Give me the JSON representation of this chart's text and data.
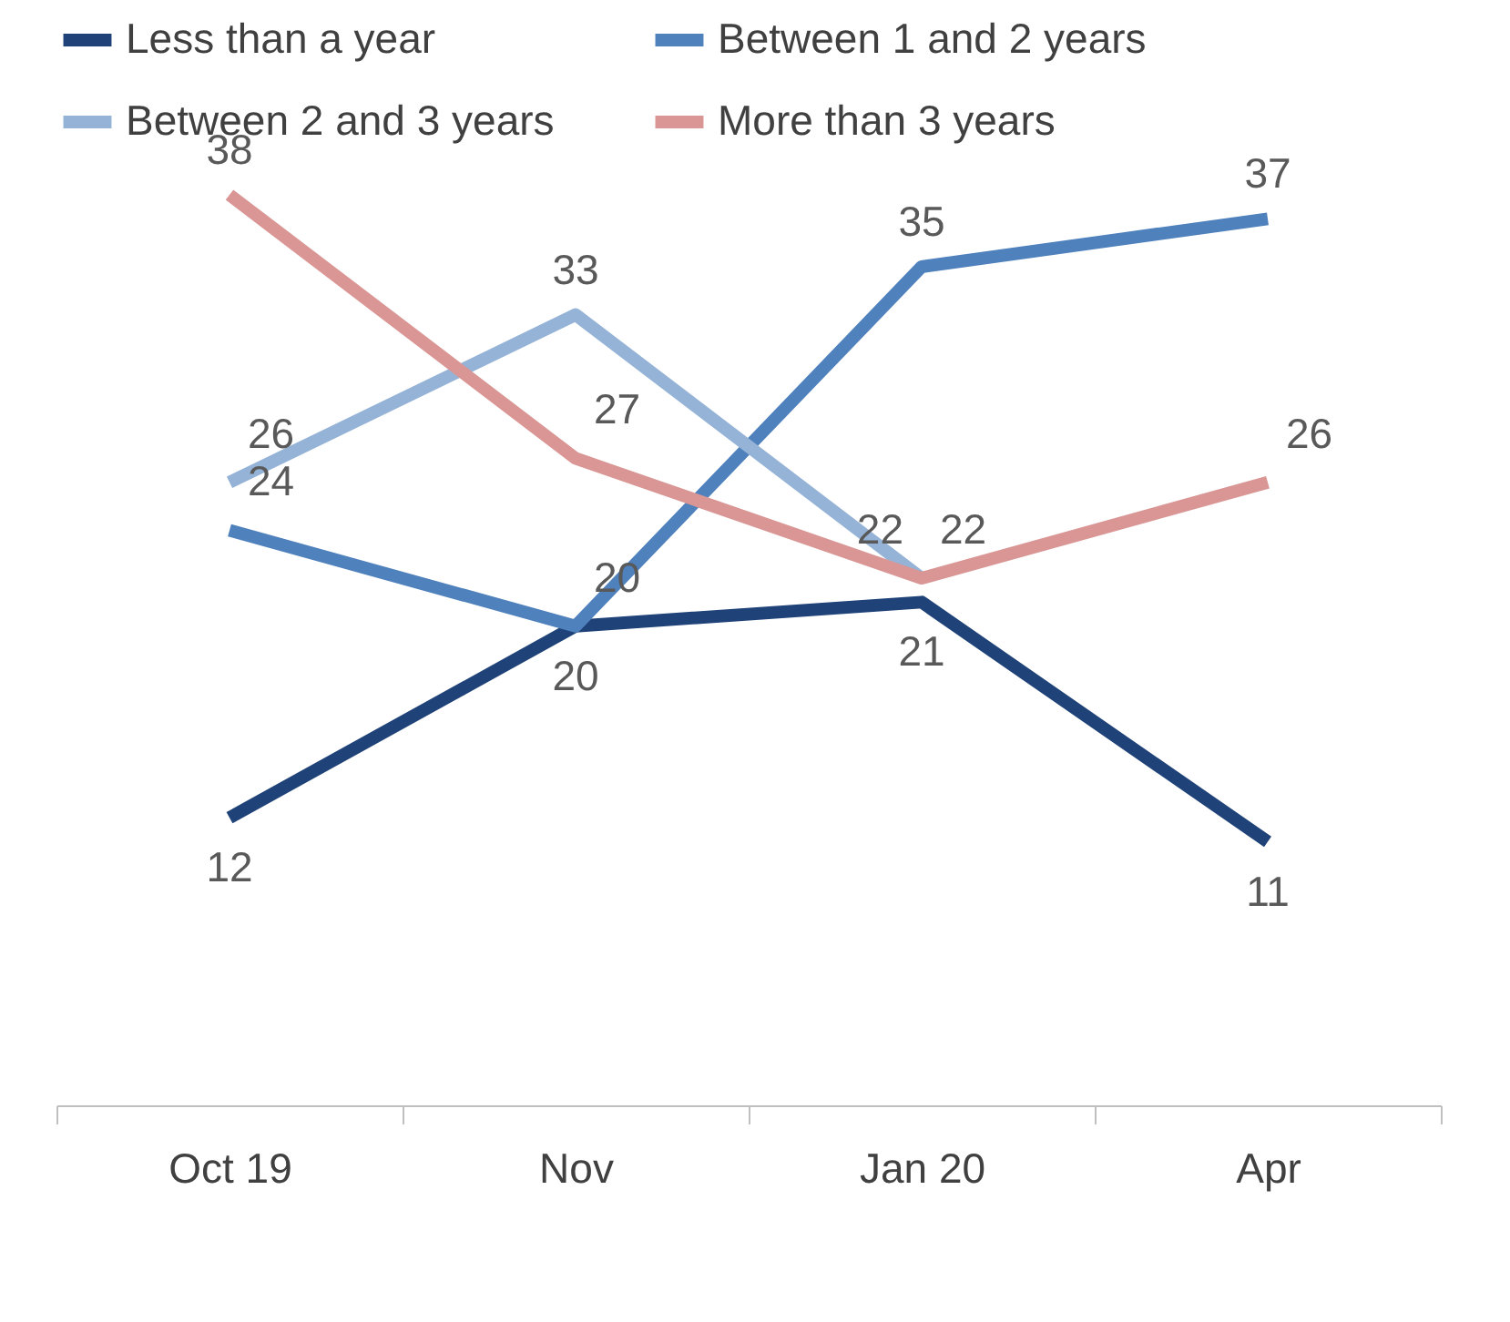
{
  "chart_data": {
    "type": "line",
    "categories": [
      "Oct 19",
      "Nov",
      "Jan 20",
      "Apr"
    ],
    "series": [
      {
        "name": "Less than a year",
        "color": "#1f4278",
        "values": [
          12,
          20,
          21,
          11
        ]
      },
      {
        "name": "Between 1 and 2 years",
        "color": "#4f81bd",
        "values": [
          24,
          20,
          35,
          37
        ]
      },
      {
        "name": "Between 2 and 3 years",
        "color": "#95b3d7",
        "values": [
          26,
          33,
          22,
          null
        ]
      },
      {
        "name": "More than 3 years",
        "color": "#d99694",
        "values": [
          38,
          27,
          22,
          26
        ]
      }
    ],
    "tick_labels": "x",
    "data_labels": true,
    "legend": "top",
    "grid": false,
    "marker": "none",
    "line_style": "solid"
  }
}
